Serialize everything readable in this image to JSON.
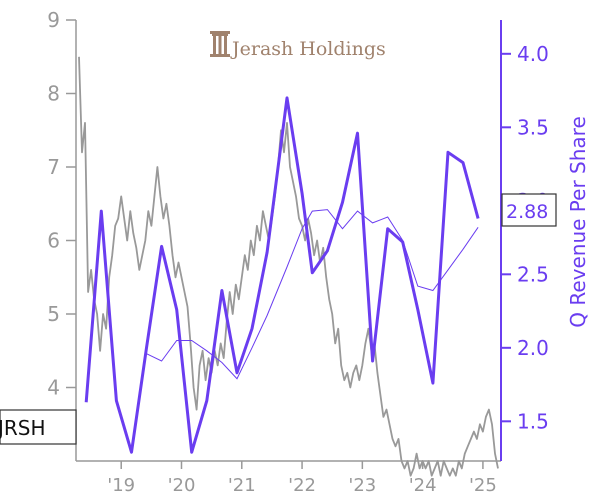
{
  "chart_data": {
    "type": "line",
    "title": "",
    "xlabel": "",
    "ylabel": "Q Revenue Per Share",
    "left_axis": {
      "ylim": [
        3,
        9
      ],
      "ticks": [
        "4",
        "5",
        "6",
        "7",
        "8",
        "9"
      ]
    },
    "right_axis": {
      "ylim": [
        1.23,
        4.23
      ],
      "ticks": [
        "1.5",
        "2.0",
        "2.5",
        "3.0",
        "3.5",
        "4.0"
      ]
    },
    "xlim": [
      2018.25,
      2025.3
    ],
    "x_ticks": [
      {
        "label": "'19",
        "x": 2019
      },
      {
        "label": "'20",
        "x": 2020
      },
      {
        "label": "'21",
        "x": 2021
      },
      {
        "label": "'22",
        "x": 2022
      },
      {
        "label": "'23",
        "x": 2023
      },
      {
        "label": "'24",
        "x": 2024
      },
      {
        "label": "'25",
        "x": 2025
      }
    ],
    "logo_text": "Jerash Holdings",
    "ticker_label": "JRSH",
    "current_value_label": "2.88",
    "colors": {
      "price": "#999999",
      "revenue": "#6a3df0",
      "logo": "#a0826d"
    },
    "series": [
      {
        "axis": "left",
        "style": "price",
        "points": [
          [
            2018.3,
            8.5
          ],
          [
            2018.35,
            7.2
          ],
          [
            2018.4,
            7.6
          ],
          [
            2018.45,
            5.3
          ],
          [
            2018.5,
            5.6
          ],
          [
            2018.55,
            5.2
          ],
          [
            2018.6,
            5.0
          ],
          [
            2018.65,
            4.5
          ],
          [
            2018.7,
            5.0
          ],
          [
            2018.75,
            4.8
          ],
          [
            2018.8,
            5.5
          ],
          [
            2018.85,
            5.8
          ],
          [
            2018.9,
            6.2
          ],
          [
            2018.95,
            6.3
          ],
          [
            2019.0,
            6.6
          ],
          [
            2019.05,
            6.3
          ],
          [
            2019.1,
            6.0
          ],
          [
            2019.15,
            6.4
          ],
          [
            2019.2,
            6.1
          ],
          [
            2019.25,
            5.9
          ],
          [
            2019.3,
            5.6
          ],
          [
            2019.35,
            5.8
          ],
          [
            2019.4,
            6.0
          ],
          [
            2019.45,
            6.4
          ],
          [
            2019.5,
            6.2
          ],
          [
            2019.55,
            6.6
          ],
          [
            2019.6,
            7.0
          ],
          [
            2019.65,
            6.6
          ],
          [
            2019.7,
            6.3
          ],
          [
            2019.75,
            6.5
          ],
          [
            2019.8,
            6.2
          ],
          [
            2019.85,
            5.8
          ],
          [
            2019.9,
            5.5
          ],
          [
            2019.95,
            5.7
          ],
          [
            2020.0,
            5.5
          ],
          [
            2020.05,
            5.3
          ],
          [
            2020.1,
            5.1
          ],
          [
            2020.15,
            4.6
          ],
          [
            2020.2,
            4.0
          ],
          [
            2020.25,
            3.7
          ],
          [
            2020.3,
            4.3
          ],
          [
            2020.35,
            4.5
          ],
          [
            2020.4,
            4.1
          ],
          [
            2020.45,
            4.4
          ],
          [
            2020.5,
            4.2
          ],
          [
            2020.55,
            4.5
          ],
          [
            2020.6,
            4.3
          ],
          [
            2020.65,
            4.6
          ],
          [
            2020.7,
            4.4
          ],
          [
            2020.75,
            4.9
          ],
          [
            2020.8,
            5.3
          ],
          [
            2020.85,
            5.0
          ],
          [
            2020.9,
            5.4
          ],
          [
            2020.95,
            5.2
          ],
          [
            2021.0,
            5.5
          ],
          [
            2021.05,
            5.8
          ],
          [
            2021.1,
            5.6
          ],
          [
            2021.15,
            6.0
          ],
          [
            2021.2,
            5.8
          ],
          [
            2021.25,
            6.2
          ],
          [
            2021.3,
            6.0
          ],
          [
            2021.35,
            6.4
          ],
          [
            2021.4,
            6.2
          ],
          [
            2021.45,
            6.0
          ],
          [
            2021.5,
            6.3
          ],
          [
            2021.55,
            6.6
          ],
          [
            2021.6,
            7.0
          ],
          [
            2021.65,
            7.5
          ],
          [
            2021.7,
            7.2
          ],
          [
            2021.75,
            7.6
          ],
          [
            2021.8,
            7.0
          ],
          [
            2021.85,
            6.8
          ],
          [
            2021.9,
            6.6
          ],
          [
            2021.95,
            6.3
          ],
          [
            2022.0,
            6.2
          ],
          [
            2022.05,
            6.0
          ],
          [
            2022.1,
            6.3
          ],
          [
            2022.15,
            6.1
          ],
          [
            2022.2,
            5.8
          ],
          [
            2022.25,
            6.0
          ],
          [
            2022.3,
            5.7
          ],
          [
            2022.35,
            5.9
          ],
          [
            2022.4,
            5.5
          ],
          [
            2022.45,
            5.2
          ],
          [
            2022.5,
            5.0
          ],
          [
            2022.55,
            4.6
          ],
          [
            2022.6,
            4.8
          ],
          [
            2022.65,
            4.3
          ],
          [
            2022.7,
            4.1
          ],
          [
            2022.75,
            4.2
          ],
          [
            2022.8,
            4.0
          ],
          [
            2022.85,
            4.2
          ],
          [
            2022.9,
            4.3
          ],
          [
            2022.95,
            4.1
          ],
          [
            2023.0,
            4.3
          ],
          [
            2023.05,
            4.6
          ],
          [
            2023.1,
            4.8
          ],
          [
            2023.15,
            4.5
          ],
          [
            2023.2,
            4.6
          ],
          [
            2023.25,
            4.2
          ],
          [
            2023.3,
            3.9
          ],
          [
            2023.35,
            3.6
          ],
          [
            2023.4,
            3.7
          ],
          [
            2023.45,
            3.5
          ],
          [
            2023.5,
            3.3
          ],
          [
            2023.55,
            3.2
          ],
          [
            2023.6,
            3.3
          ],
          [
            2023.65,
            3.0
          ],
          [
            2023.7,
            2.9
          ],
          [
            2023.75,
            3.0
          ],
          [
            2023.8,
            2.8
          ],
          [
            2023.85,
            2.9
          ],
          [
            2023.9,
            3.1
          ],
          [
            2023.95,
            2.9
          ],
          [
            2024.0,
            3.0
          ],
          [
            2024.05,
            2.9
          ],
          [
            2024.1,
            3.0
          ],
          [
            2024.15,
            2.8
          ],
          [
            2024.2,
            2.9
          ],
          [
            2024.25,
            3.0
          ],
          [
            2024.3,
            2.8
          ],
          [
            2024.35,
            3.0
          ],
          [
            2024.4,
            2.9
          ],
          [
            2024.45,
            2.8
          ],
          [
            2024.5,
            2.9
          ],
          [
            2024.55,
            2.8
          ],
          [
            2024.6,
            3.0
          ],
          [
            2024.65,
            2.9
          ],
          [
            2024.7,
            3.1
          ],
          [
            2024.75,
            3.2
          ],
          [
            2024.8,
            3.3
          ],
          [
            2024.85,
            3.4
          ],
          [
            2024.9,
            3.3
          ],
          [
            2024.95,
            3.5
          ],
          [
            2025.0,
            3.4
          ],
          [
            2025.05,
            3.6
          ],
          [
            2025.1,
            3.7
          ],
          [
            2025.15,
            3.5
          ],
          [
            2025.2,
            3.1
          ],
          [
            2025.25,
            2.9
          ]
        ]
      },
      {
        "axis": "right",
        "style": "revenue-quarterly",
        "points": [
          [
            2018.42,
            1.63
          ],
          [
            2018.67,
            2.93
          ],
          [
            2018.92,
            1.64
          ],
          [
            2019.17,
            1.29
          ],
          [
            2019.42,
            2.0
          ],
          [
            2019.67,
            2.69
          ],
          [
            2019.92,
            2.26
          ],
          [
            2020.17,
            1.29
          ],
          [
            2020.42,
            1.64
          ],
          [
            2020.67,
            2.39
          ],
          [
            2020.92,
            1.83
          ],
          [
            2021.17,
            2.13
          ],
          [
            2021.42,
            2.65
          ],
          [
            2021.75,
            3.7
          ],
          [
            2022.0,
            3.05
          ],
          [
            2022.17,
            2.51
          ],
          [
            2022.42,
            2.66
          ],
          [
            2022.67,
            2.99
          ],
          [
            2022.92,
            3.46
          ],
          [
            2023.17,
            1.91
          ],
          [
            2023.42,
            2.81
          ],
          [
            2023.67,
            2.72
          ],
          [
            2023.92,
            2.26
          ],
          [
            2024.17,
            1.76
          ],
          [
            2024.42,
            3.33
          ],
          [
            2024.67,
            3.26
          ],
          [
            2024.92,
            2.88
          ]
        ]
      },
      {
        "axis": "right",
        "style": "revenue-ttm",
        "points": [
          [
            2019.42,
            1.96
          ],
          [
            2019.67,
            1.91
          ],
          [
            2019.92,
            2.05
          ],
          [
            2020.17,
            2.05
          ],
          [
            2020.42,
            1.98
          ],
          [
            2020.67,
            1.9
          ],
          [
            2020.92,
            1.79
          ],
          [
            2021.17,
            2.0
          ],
          [
            2021.42,
            2.22
          ],
          [
            2021.75,
            2.55
          ],
          [
            2022.0,
            2.81
          ],
          [
            2022.17,
            2.93
          ],
          [
            2022.42,
            2.94
          ],
          [
            2022.67,
            2.81
          ],
          [
            2022.92,
            2.93
          ],
          [
            2023.17,
            2.85
          ],
          [
            2023.42,
            2.89
          ],
          [
            2023.67,
            2.73
          ],
          [
            2023.92,
            2.42
          ],
          [
            2024.17,
            2.39
          ],
          [
            2024.42,
            2.53
          ],
          [
            2024.67,
            2.67
          ],
          [
            2024.92,
            2.82
          ]
        ]
      }
    ]
  }
}
